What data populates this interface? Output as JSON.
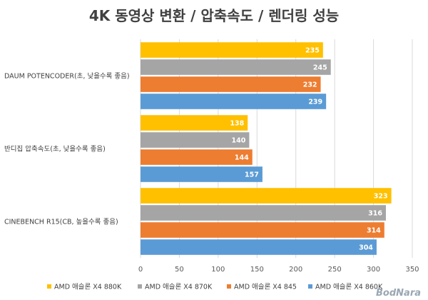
{
  "chart_data": {
    "type": "bar",
    "orientation": "horizontal",
    "title": "4K 동영상 변환 / 압축속도 /  렌더링 성능",
    "categories": [
      "DAUM POTENCODER(초, 낮을수록 좋음)",
      "반디집 압축속도(초, 낮을수록 좋음)",
      "CINEBENCH R15(CB, 높을수록 좋음)"
    ],
    "series": [
      {
        "name": "AMD 애슬론 X4 880K",
        "color": "#FFC000",
        "values": [
          235,
          138,
          323
        ]
      },
      {
        "name": "AMD 애슬론 X4 870K",
        "color": "#A5A5A5",
        "values": [
          245,
          140,
          316
        ]
      },
      {
        "name": "AMD 애슬론 X4 845",
        "color": "#ED7D31",
        "values": [
          232,
          144,
          314
        ]
      },
      {
        "name": "AMD 애슬론 X4 860K",
        "color": "#5B9BD5",
        "values": [
          239,
          157,
          304
        ]
      }
    ],
    "xlim": [
      0,
      350
    ],
    "xticks": [
      0,
      50,
      100,
      150,
      200,
      250,
      300,
      350
    ],
    "grid": true,
    "legend": "bottom",
    "xlabel": "",
    "ylabel": ""
  },
  "watermark": "BodNara"
}
